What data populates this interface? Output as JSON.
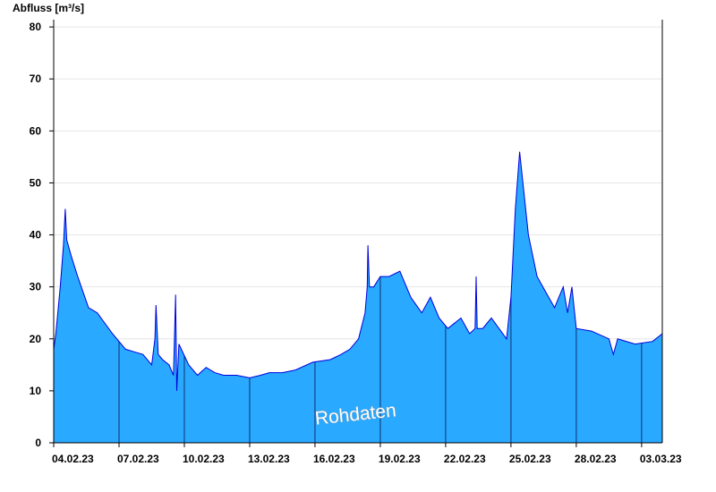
{
  "chart_data": {
    "type": "area",
    "y_label": "Abfluss [m³/s]",
    "annotation": "Rohdaten",
    "fill_color": "#29a9ff",
    "line_color": "#0000dd",
    "grid": true,
    "xlim": [
      0,
      27.95
    ],
    "ylim": [
      0,
      81.4
    ],
    "yticks": [
      0,
      10,
      20,
      30,
      40,
      50,
      60,
      70,
      80
    ],
    "xticks": [
      {
        "value": 0,
        "label": "04.02.23"
      },
      {
        "value": 3,
        "label": "07.02.23"
      },
      {
        "value": 6,
        "label": "10.02.23"
      },
      {
        "value": 9,
        "label": "13.02.23"
      },
      {
        "value": 12,
        "label": "16.02.23"
      },
      {
        "value": 15,
        "label": "19.02.23"
      },
      {
        "value": 18,
        "label": "22.02.23"
      },
      {
        "value": 21,
        "label": "25.02.23"
      },
      {
        "value": 24,
        "label": "28.02.23"
      },
      {
        "value": 27,
        "label": "03.03.23"
      }
    ],
    "x": [
      0,
      0.1,
      0.3,
      0.45,
      0.53,
      0.6,
      0.8,
      1.1,
      1.6,
      2.0,
      2.7,
      3.3,
      3.7,
      4.1,
      4.5,
      4.65,
      4.7,
      4.8,
      5.0,
      5.3,
      5.5,
      5.6,
      5.65,
      5.75,
      6.2,
      6.6,
      7.0,
      7.4,
      7.8,
      8.4,
      9.0,
      9.5,
      9.9,
      10.5,
      11.1,
      11.9,
      12.7,
      13.2,
      13.6,
      14.0,
      14.3,
      14.4,
      14.43,
      14.5,
      14.7,
      15.0,
      15.4,
      15.9,
      16.4,
      16.9,
      17.3,
      17.7,
      18.1,
      18.7,
      19.1,
      19.35,
      19.4,
      19.45,
      19.7,
      20.1,
      20.8,
      21.0,
      21.2,
      21.4,
      21.6,
      21.8,
      22.2,
      22.6,
      23.0,
      23.4,
      23.6,
      23.8,
      24.0,
      24.7,
      25.5,
      25.7,
      25.9,
      26.7,
      27.5,
      27.95
    ],
    "values": [
      18,
      21,
      30,
      38,
      45,
      39,
      36,
      32,
      26,
      25,
      21,
      18,
      17.5,
      17,
      15,
      20,
      26.5,
      17,
      16,
      15,
      13,
      28.5,
      10,
      19,
      15,
      13,
      14.5,
      13.5,
      13,
      13,
      12.5,
      13,
      13.5,
      13.5,
      14,
      15.5,
      16,
      17,
      18,
      20,
      25,
      30,
      38,
      30,
      30,
      32,
      32,
      33,
      28,
      25,
      28,
      24,
      22,
      24,
      21,
      22,
      32,
      22,
      22,
      24,
      20,
      28,
      45,
      56,
      48,
      40,
      32,
      29,
      26,
      30,
      25,
      30,
      22,
      21.5,
      20,
      17,
      20,
      19,
      19.5,
      21
    ]
  }
}
